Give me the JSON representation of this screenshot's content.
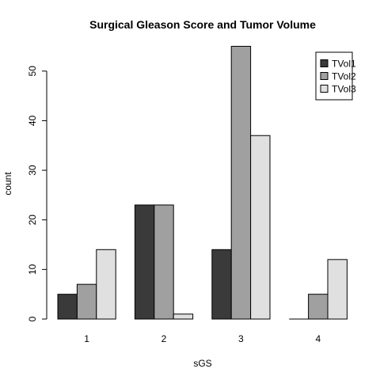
{
  "chart_data": {
    "type": "bar",
    "title": "Surgical Gleason Score and Tumor Volume",
    "xlabel": "sGS",
    "ylabel": "count",
    "categories": [
      "1",
      "2",
      "3",
      "4"
    ],
    "series": [
      {
        "name": "TVol1",
        "values": [
          5,
          23,
          14,
          0
        ],
        "color": "#3a3a3a"
      },
      {
        "name": "TVol2",
        "values": [
          7,
          23,
          55,
          5
        ],
        "color": "#a0a0a0"
      },
      {
        "name": "TVol3",
        "values": [
          14,
          1,
          37,
          12
        ],
        "color": "#e0e0e0"
      }
    ],
    "yticks": [
      0,
      10,
      20,
      30,
      40,
      50
    ],
    "ylim": [
      0,
      55
    ],
    "legend": "top-right",
    "grid": false
  }
}
